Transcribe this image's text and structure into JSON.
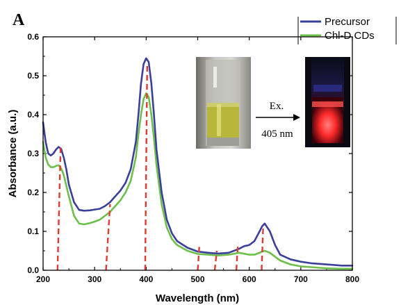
{
  "panel_label": "A",
  "inset": {
    "excitation_label": "Ex.",
    "wavelength_label": "405 nm",
    "photo_left": "vial-under-daylight",
    "photo_right": "vial-red-fluorescence",
    "arrow_icon": "arrow-right-icon"
  },
  "colors": {
    "precursor": "#3a3f9c",
    "cds": "#6cc04a",
    "marker": "#e03b2e",
    "glow": "#ff2a2a"
  },
  "chart_data": {
    "type": "line",
    "title": "",
    "xlabel": "Wavelength (nm)",
    "ylabel": "Absorbance (a.u.)",
    "xlim": [
      200,
      800
    ],
    "ylim": [
      0.0,
      0.6
    ],
    "xticks": [
      200,
      300,
      400,
      500,
      600,
      700,
      800
    ],
    "yticks": [
      0.0,
      0.1,
      0.2,
      0.3,
      0.4,
      0.5,
      0.6
    ],
    "xtick_labels": [
      "200",
      "300",
      "400",
      "500",
      "600",
      "700",
      "800"
    ],
    "ytick_labels": [
      "0.0",
      "0.1",
      "0.2",
      "0.3",
      "0.4",
      "0.5",
      "0.6"
    ],
    "legend": {
      "placement": "top-right"
    },
    "series": [
      {
        "name": "Precursor",
        "x": [
          200,
          205,
          210,
          215,
          220,
          225,
          230,
          235,
          240,
          245,
          250,
          260,
          270,
          280,
          290,
          300,
          310,
          320,
          330,
          340,
          350,
          360,
          370,
          380,
          385,
          390,
          395,
          400,
          405,
          410,
          415,
          420,
          430,
          440,
          450,
          460,
          480,
          500,
          520,
          540,
          560,
          580,
          590,
          600,
          610,
          620,
          625,
          630,
          640,
          650,
          660,
          680,
          700,
          720,
          750,
          780,
          800
        ],
        "y": [
          0.38,
          0.33,
          0.3,
          0.295,
          0.3,
          0.31,
          0.317,
          0.312,
          0.29,
          0.26,
          0.22,
          0.175,
          0.155,
          0.153,
          0.154,
          0.156,
          0.158,
          0.165,
          0.175,
          0.19,
          0.205,
          0.225,
          0.26,
          0.33,
          0.4,
          0.48,
          0.53,
          0.545,
          0.535,
          0.48,
          0.4,
          0.31,
          0.2,
          0.13,
          0.095,
          0.075,
          0.058,
          0.048,
          0.045,
          0.043,
          0.045,
          0.055,
          0.062,
          0.065,
          0.075,
          0.1,
          0.113,
          0.12,
          0.1,
          0.065,
          0.04,
          0.028,
          0.022,
          0.018,
          0.015,
          0.012,
          0.012
        ]
      },
      {
        "name": "Chl-D CDs",
        "x": [
          200,
          205,
          210,
          215,
          220,
          225,
          230,
          235,
          240,
          250,
          260,
          270,
          280,
          290,
          300,
          310,
          320,
          330,
          340,
          350,
          360,
          370,
          380,
          385,
          390,
          395,
          400,
          405,
          410,
          415,
          420,
          430,
          440,
          450,
          460,
          480,
          500,
          520,
          540,
          560,
          580,
          600,
          610,
          620,
          625,
          630,
          640,
          650,
          660,
          680,
          700,
          720,
          750,
          780,
          800
        ],
        "y": [
          0.33,
          0.29,
          0.272,
          0.265,
          0.265,
          0.268,
          0.27,
          0.262,
          0.245,
          0.19,
          0.14,
          0.12,
          0.118,
          0.121,
          0.125,
          0.13,
          0.14,
          0.15,
          0.165,
          0.18,
          0.2,
          0.23,
          0.29,
          0.35,
          0.4,
          0.44,
          0.455,
          0.445,
          0.4,
          0.34,
          0.27,
          0.17,
          0.11,
          0.08,
          0.065,
          0.05,
          0.042,
          0.04,
          0.038,
          0.04,
          0.045,
          0.04,
          0.04,
          0.045,
          0.048,
          0.05,
          0.045,
          0.035,
          0.025,
          0.015,
          0.01,
          0.008,
          0.005,
          0.004,
          0.004
        ]
      }
    ],
    "annotations": {
      "type": "dashed-marker",
      "markers": [
        {
          "x_bottom": 228,
          "x_top": 234,
          "y_top": 0.315
        },
        {
          "x_bottom": 322,
          "x_top": 330,
          "y_top": 0.17
        },
        {
          "x_bottom": 398,
          "x_top": 402,
          "y_top": 0.53
        },
        {
          "x_bottom": 500,
          "x_top": 503,
          "y_top": 0.06
        },
        {
          "x_bottom": 533,
          "x_top": 537,
          "y_top": 0.05
        },
        {
          "x_bottom": 575,
          "x_top": 578,
          "y_top": 0.07
        },
        {
          "x_bottom": 624,
          "x_top": 627,
          "y_top": 0.115
        }
      ]
    }
  }
}
